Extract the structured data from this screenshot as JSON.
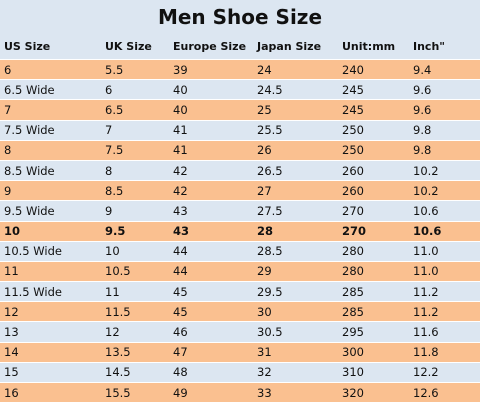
{
  "title": "Men Shoe Size",
  "headers": [
    "US Size",
    "UK Size",
    "Europe Size",
    "Japan Size",
    "Unit:mm",
    "Inch\""
  ],
  "rows": [
    [
      "6",
      "5.5",
      "39",
      "24",
      "240",
      "9.4"
    ],
    [
      "6.5 Wide",
      "6",
      "40",
      "24.5",
      "245",
      "9.6"
    ],
    [
      "7",
      "6.5",
      "40",
      "25",
      "245",
      "9.6"
    ],
    [
      "7.5 Wide",
      "7",
      "41",
      "25.5",
      "250",
      "9.8"
    ],
    [
      "8",
      "7.5",
      "41",
      "26",
      "250",
      "9.8"
    ],
    [
      "8.5 Wide",
      "8",
      "42",
      "26.5",
      "260",
      "10.2"
    ],
    [
      "9",
      "8.5",
      "42",
      "27",
      "260",
      "10.2"
    ],
    [
      "9.5 Wide",
      "9",
      "43",
      "27.5",
      "270",
      "10.6"
    ],
    [
      "10",
      "9.5",
      "43",
      "28",
      "270",
      "10.6"
    ],
    [
      "10.5 Wide",
      "10",
      "44",
      "28.5",
      "280",
      "11.0"
    ],
    [
      "11",
      "10.5",
      "44",
      "29",
      "280",
      "11.0"
    ],
    [
      "11.5 Wide",
      "11",
      "45",
      "29.5",
      "285",
      "11.2"
    ],
    [
      "12",
      "11.5",
      "45",
      "30",
      "285",
      "11.2"
    ],
    [
      "13",
      "12",
      "46",
      "30.5",
      "295",
      "11.6"
    ],
    [
      "14",
      "13.5",
      "47",
      "31",
      "300",
      "11.8"
    ],
    [
      "15",
      "14.5",
      "48",
      "32",
      "310",
      "12.2"
    ],
    [
      "16",
      "15.5",
      "49",
      "33",
      "320",
      "12.6"
    ]
  ],
  "highlighted_row": 8,
  "colors": {
    "band_orange": "#fac090",
    "band_blue": "#dce6f1",
    "text": "#111111"
  }
}
